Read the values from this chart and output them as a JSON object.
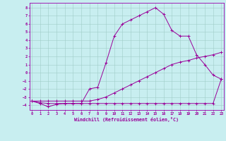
{
  "xlabel": "Windchill (Refroidissement éolien,°C)",
  "background_color": "#c8eef0",
  "grid_color": "#a0ccc8",
  "line_color": "#990099",
  "spine_color": "#9900aa",
  "x_ticks": [
    0,
    1,
    2,
    3,
    4,
    5,
    6,
    7,
    8,
    9,
    10,
    11,
    12,
    13,
    14,
    15,
    16,
    17,
    18,
    19,
    20,
    21,
    22,
    23
  ],
  "y_ticks": [
    -4,
    -3,
    -2,
    -1,
    0,
    1,
    2,
    3,
    4,
    5,
    6,
    7,
    8
  ],
  "ylim": [
    -4.6,
    8.6
  ],
  "xlim": [
    -0.3,
    23.3
  ],
  "line1_x": [
    0,
    1,
    2,
    3,
    4,
    5,
    6,
    7,
    8,
    9,
    10,
    11,
    12,
    13,
    14,
    15,
    16,
    17,
    18,
    19,
    20,
    21,
    22,
    23
  ],
  "line1_y": [
    -3.5,
    -3.8,
    -4.2,
    -3.9,
    -3.8,
    -3.8,
    -3.8,
    -3.8,
    -3.8,
    -3.8,
    -3.8,
    -3.8,
    -3.8,
    -3.8,
    -3.8,
    -3.8,
    -3.8,
    -3.8,
    -3.8,
    -3.8,
    -3.8,
    -3.8,
    -3.8,
    -0.8
  ],
  "line2_x": [
    0,
    1,
    2,
    3,
    4,
    5,
    6,
    7,
    8,
    9,
    10,
    11,
    12,
    13,
    14,
    15,
    16,
    17,
    18,
    19,
    20,
    21,
    22,
    23
  ],
  "line2_y": [
    -3.5,
    -3.7,
    -3.8,
    -3.8,
    -3.8,
    -3.8,
    -3.8,
    -2.0,
    -1.8,
    1.2,
    4.5,
    6.0,
    6.5,
    7.0,
    7.5,
    8.0,
    7.2,
    5.2,
    4.5,
    4.5,
    2.2,
    1.0,
    -0.3,
    -0.8
  ],
  "line3_x": [
    0,
    1,
    2,
    3,
    4,
    5,
    6,
    7,
    8,
    9,
    10,
    11,
    12,
    13,
    14,
    15,
    16,
    17,
    18,
    19,
    20,
    21,
    22,
    23
  ],
  "line3_y": [
    -3.5,
    -3.5,
    -3.5,
    -3.5,
    -3.5,
    -3.5,
    -3.5,
    -3.5,
    -3.3,
    -3.0,
    -2.5,
    -2.0,
    -1.5,
    -1.0,
    -0.5,
    0.0,
    0.5,
    1.0,
    1.3,
    1.5,
    1.8,
    2.0,
    2.2,
    2.5
  ]
}
